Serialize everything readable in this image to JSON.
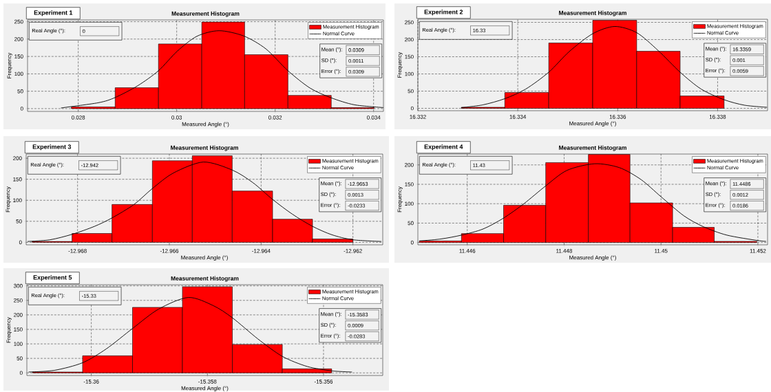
{
  "chart_data": [
    {
      "type": "histogram",
      "title": "Measurement Histogram",
      "xlabel": "Measured Angle (°)",
      "ylabel": "Frequency",
      "xlim": [
        0.02697,
        0.0342
      ],
      "ylim": [
        -8,
        255
      ],
      "xticks": [
        0.028,
        0.03,
        0.032,
        0.034
      ],
      "yticks": [
        0,
        50,
        100,
        150,
        200,
        250
      ],
      "grid": true,
      "legend": "top right",
      "annotations": [
        "Experiment 1",
        "Real Angle (°):",
        "0",
        "Mean (°):",
        "0.0309",
        "SD (°):",
        "0.0011",
        "Error (°):",
        "0.0309"
      ],
      "series": [
        {
          "name": "Measurement Histogram",
          "color": "#ff0000",
          "bins": [
            0.02786,
            0.02875,
            0.02963,
            0.03051,
            0.03138,
            0.03226,
            0.03314,
            0.03401
          ],
          "values": [
            5,
            60,
            186,
            249,
            155,
            38,
            3
          ]
        },
        {
          "name": "Normal Curve",
          "type": "line",
          "color": "#000000",
          "x": [
            0.02765,
            0.02841,
            0.02875,
            0.02921,
            0.02963,
            0.03001,
            0.03041,
            0.03086,
            0.03136,
            0.03181,
            0.03226,
            0.03271,
            0.03314,
            0.03361,
            0.0342
          ],
          "values": [
            2,
            17,
            32,
            66,
            109,
            165,
            208,
            224,
            209,
            172,
            109,
            59,
            31,
            11,
            3
          ]
        }
      ]
    },
    {
      "type": "histogram",
      "title": "Measurement Histogram",
      "xlabel": "Measured Angle (°)",
      "ylabel": "Frequency",
      "xlim": [
        16.332,
        16.339
      ],
      "ylim": [
        -7,
        259
      ],
      "xticks": [
        16.332,
        16.334,
        16.336,
        16.338
      ],
      "yticks": [
        0,
        50,
        100,
        150,
        200,
        250
      ],
      "grid": true,
      "legend": "top right",
      "annotations": [
        "Experiment 2",
        "Real Angle (°):",
        "16.33",
        "Mean (°):",
        "16.3359",
        "SD (°):",
        "0.001",
        "Error (°):",
        "0.0059"
      ],
      "series": [
        {
          "name": "Measurement Histogram",
          "color": "#ff0000",
          "bins": [
            16.33287,
            16.33374,
            16.33462,
            16.3355,
            16.33638,
            16.33725,
            16.33813
          ],
          "values": [
            3,
            46,
            190,
            256,
            166,
            36
          ]
        },
        {
          "name": "Normal Curve",
          "type": "line",
          "color": "#000000",
          "x": [
            16.33287,
            16.3333,
            16.33374,
            16.33416,
            16.33462,
            16.33503,
            16.3355,
            16.33594,
            16.33638,
            16.33681,
            16.33725,
            16.33767,
            16.33813,
            16.33854,
            16.33899
          ],
          "values": [
            2,
            10,
            28,
            56,
            105,
            165,
            217,
            238,
            220,
            168,
            105,
            56,
            25,
            9,
            3
          ]
        }
      ]
    },
    {
      "type": "histogram",
      "title": "Measurement Histogram",
      "xlabel": "Measured Angle (°)",
      "ylabel": "Frequency",
      "xlim": [
        -12.96912,
        -12.96135
      ],
      "ylim": [
        -6,
        210
      ],
      "xticks": [
        -12.968,
        -12.966,
        -12.964,
        -12.962
      ],
      "yticks": [
        0,
        50,
        100,
        150,
        200
      ],
      "grid": true,
      "legend": "top right",
      "annotations": [
        "Experiment 3",
        "Real Angle (°):",
        "-12.942",
        "Mean (°):",
        "-12.9653",
        "SD (°):",
        "0.0013",
        "Error (°):",
        "-0.0233"
      ],
      "series": [
        {
          "name": "Measurement Histogram",
          "color": "#ff0000",
          "bins": [
            -12.96899,
            -12.96812,
            -12.96725,
            -12.96637,
            -12.9655,
            -12.96463,
            -12.96375,
            -12.96288,
            -12.962
          ],
          "values": [
            2,
            21,
            90,
            194,
            206,
            122,
            55,
            8
          ]
        },
        {
          "name": "Normal Curve",
          "type": "line",
          "color": "#000000",
          "x": [
            -12.96909,
            -12.9686,
            -12.96812,
            -12.96763,
            -12.96725,
            -12.96677,
            -12.96637,
            -12.96591,
            -12.96526,
            -12.96463,
            -12.96418,
            -12.96375,
            -12.96332,
            -12.96288,
            -12.96246,
            -12.962,
            -12.96138
          ],
          "values": [
            2,
            6,
            19,
            38,
            58,
            90,
            128,
            165,
            191,
            172,
            142,
            102,
            67,
            38,
            18,
            6,
            2
          ]
        }
      ]
    },
    {
      "type": "histogram",
      "title": "Measurement Histogram",
      "xlabel": "Measured Angle (°)",
      "ylabel": "Frequency",
      "xlim": [
        11.44498,
        11.4522
      ],
      "ylim": [
        -6,
        228
      ],
      "xticks": [
        11.446,
        11.448,
        11.45,
        11.452
      ],
      "yticks": [
        0,
        50,
        100,
        150,
        200
      ],
      "grid": true,
      "legend": "top right",
      "annotations": [
        "Experiment 4",
        "Real Angle (°):",
        "11.43",
        "Mean (°):",
        "11.4486",
        "SD (°):",
        "0.0012",
        "Error (°):",
        "0.0186"
      ],
      "series": [
        {
          "name": "Measurement Histogram",
          "color": "#ff0000",
          "bins": [
            11.44501,
            11.44588,
            11.44675,
            11.44762,
            11.4485,
            11.44936,
            11.45024,
            11.4511,
            11.45198
          ],
          "values": [
            4,
            23,
            96,
            206,
            227,
            102,
            39,
            3
          ]
        },
        {
          "name": "Normal Curve",
          "type": "line",
          "color": "#000000",
          "x": [
            11.44501,
            11.44545,
            11.44588,
            11.44633,
            11.44675,
            11.44717,
            11.44762,
            11.44806,
            11.44863,
            11.44914,
            11.44959,
            11.45,
            11.45047,
            11.45087,
            11.45136,
            11.452,
            11.45217
          ],
          "values": [
            4,
            9,
            19,
            35,
            63,
            100,
            146,
            186,
            203,
            193,
            162,
            118,
            69,
            41,
            19,
            5,
            3
          ]
        }
      ]
    },
    {
      "type": "histogram",
      "title": "Measurement Histogram",
      "xlabel": "Measured Angle (°)",
      "ylabel": "Frequency",
      "xlim": [
        -15.36111,
        -15.35498
      ],
      "ylim": [
        -9,
        304
      ],
      "xticks": [
        -15.36,
        -15.358,
        -15.356
      ],
      "yticks": [
        0,
        50,
        100,
        150,
        200,
        250,
        300
      ],
      "grid": true,
      "legend": "top right",
      "annotations": [
        "Experiment 5",
        "Real Angle (°):",
        "-15.33",
        "Mean (°):",
        "-15.3583",
        "SD (°):",
        "0.0009",
        "Error (°):",
        "-0.0283"
      ],
      "series": [
        {
          "name": "Measurement Histogram",
          "color": "#ff0000",
          "bins": [
            -15.36101,
            -15.36015,
            -15.35929,
            -15.35843,
            -15.35757,
            -15.35671,
            -15.35586
          ],
          "values": [
            3,
            59,
            226,
            297,
            98,
            14
          ]
        },
        {
          "name": "Normal Curve",
          "type": "line",
          "color": "#000000",
          "x": [
            -15.36108,
            -15.36063,
            -15.36015,
            -15.35974,
            -15.35929,
            -15.35884,
            -15.35833,
            -15.3579,
            -15.35757,
            -15.35713,
            -15.35671,
            -15.35628,
            -15.35586,
            -15.35551
          ],
          "values": [
            3,
            9,
            35,
            83,
            153,
            220,
            260,
            232,
            190,
            117,
            57,
            22,
            7,
            3
          ]
        }
      ]
    }
  ]
}
